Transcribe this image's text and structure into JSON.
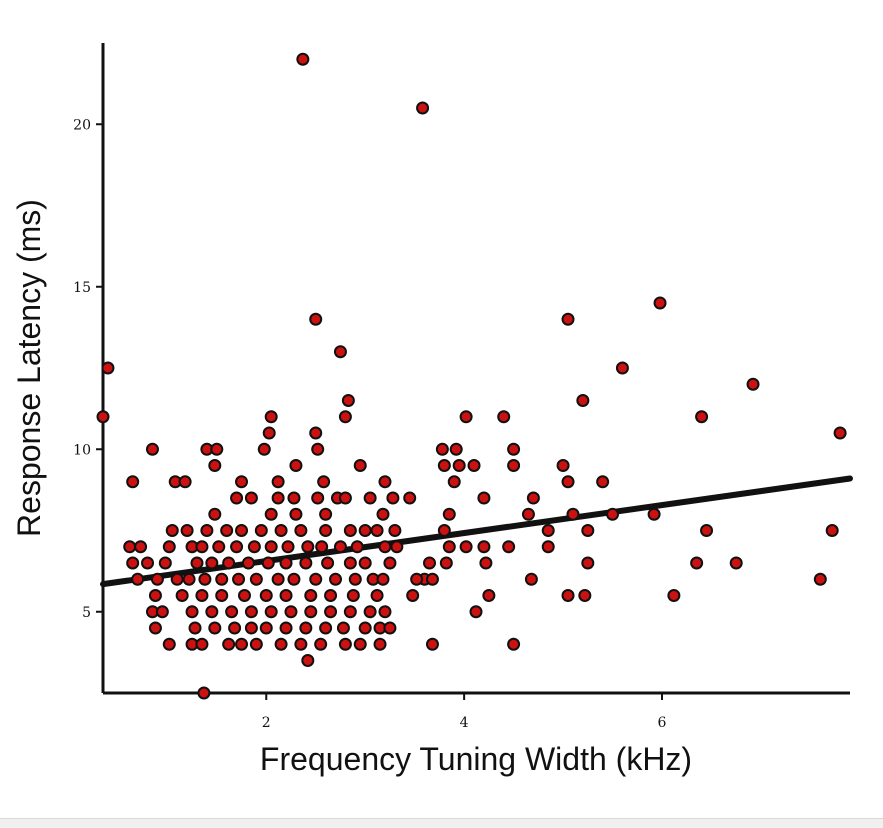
{
  "chart_data": {
    "type": "scatter",
    "title": "",
    "xlabel": "Frequency Tuning Width (kHz)",
    "ylabel": "Response Latency (ms)",
    "xlim": [
      0.35,
      7.9
    ],
    "ylim": [
      2.5,
      22.5
    ],
    "xticks": [
      2,
      4,
      6
    ],
    "yticks": [
      5,
      10,
      15,
      20
    ],
    "grid": false,
    "legend": "none",
    "marker_color": "#cc1111",
    "marker_edge_color": "#111111",
    "trend_line": {
      "x": [
        0.35,
        7.9
      ],
      "y": [
        5.85,
        9.1
      ]
    },
    "points": [
      [
        2.37,
        22.0
      ],
      [
        3.58,
        20.5
      ],
      [
        0.4,
        12.5
      ],
      [
        0.35,
        11.0
      ],
      [
        2.5,
        14.0
      ],
      [
        2.75,
        13.0
      ],
      [
        2.83,
        11.5
      ],
      [
        2.8,
        11.0
      ],
      [
        2.05,
        11.0
      ],
      [
        2.5,
        10.5
      ],
      [
        2.03,
        10.5
      ],
      [
        1.98,
        10.0
      ],
      [
        1.4,
        10.0
      ],
      [
        1.5,
        10.0
      ],
      [
        0.85,
        10.0
      ],
      [
        2.52,
        10.0
      ],
      [
        2.95,
        9.5
      ],
      [
        1.48,
        9.5
      ],
      [
        2.3,
        9.5
      ],
      [
        0.65,
        9.0
      ],
      [
        1.08,
        9.0
      ],
      [
        1.18,
        9.0
      ],
      [
        1.75,
        9.0
      ],
      [
        2.12,
        9.0
      ],
      [
        2.58,
        9.0
      ],
      [
        3.2,
        9.0
      ],
      [
        1.7,
        8.5
      ],
      [
        1.85,
        8.5
      ],
      [
        2.12,
        8.5
      ],
      [
        2.28,
        8.5
      ],
      [
        2.52,
        8.5
      ],
      [
        2.72,
        8.5
      ],
      [
        2.8,
        8.5
      ],
      [
        3.05,
        8.5
      ],
      [
        3.28,
        8.5
      ],
      [
        3.45,
        8.5
      ],
      [
        2.05,
        8.0
      ],
      [
        2.3,
        8.0
      ],
      [
        2.6,
        8.0
      ],
      [
        3.18,
        8.0
      ],
      [
        1.48,
        8.0
      ],
      [
        1.05,
        7.5
      ],
      [
        1.2,
        7.5
      ],
      [
        1.4,
        7.5
      ],
      [
        1.6,
        7.5
      ],
      [
        1.75,
        7.5
      ],
      [
        1.95,
        7.5
      ],
      [
        2.15,
        7.5
      ],
      [
        2.35,
        7.5
      ],
      [
        2.6,
        7.5
      ],
      [
        2.85,
        7.5
      ],
      [
        3.0,
        7.5
      ],
      [
        3.12,
        7.5
      ],
      [
        3.3,
        7.5
      ],
      [
        0.62,
        7.0
      ],
      [
        0.73,
        7.0
      ],
      [
        1.02,
        7.0
      ],
      [
        1.25,
        7.0
      ],
      [
        1.35,
        7.0
      ],
      [
        1.52,
        7.0
      ],
      [
        1.7,
        7.0
      ],
      [
        1.88,
        7.0
      ],
      [
        2.05,
        7.0
      ],
      [
        2.22,
        7.0
      ],
      [
        2.42,
        7.0
      ],
      [
        2.56,
        7.0
      ],
      [
        2.75,
        7.0
      ],
      [
        2.92,
        7.0
      ],
      [
        3.2,
        7.0
      ],
      [
        3.32,
        7.0
      ],
      [
        0.65,
        6.5
      ],
      [
        0.8,
        6.5
      ],
      [
        0.98,
        6.5
      ],
      [
        1.3,
        6.5
      ],
      [
        1.45,
        6.5
      ],
      [
        1.62,
        6.5
      ],
      [
        1.82,
        6.5
      ],
      [
        2.02,
        6.5
      ],
      [
        2.2,
        6.5
      ],
      [
        2.4,
        6.5
      ],
      [
        2.62,
        6.5
      ],
      [
        2.85,
        6.5
      ],
      [
        3.0,
        6.5
      ],
      [
        3.25,
        6.5
      ],
      [
        0.7,
        6.0
      ],
      [
        0.9,
        6.0
      ],
      [
        1.1,
        6.0
      ],
      [
        1.22,
        6.0
      ],
      [
        1.38,
        6.0
      ],
      [
        1.55,
        6.0
      ],
      [
        1.72,
        6.0
      ],
      [
        1.9,
        6.0
      ],
      [
        2.12,
        6.0
      ],
      [
        2.28,
        6.0
      ],
      [
        2.5,
        6.0
      ],
      [
        2.7,
        6.0
      ],
      [
        2.9,
        6.0
      ],
      [
        3.08,
        6.0
      ],
      [
        3.18,
        6.0
      ],
      [
        0.88,
        5.5
      ],
      [
        1.15,
        5.5
      ],
      [
        1.35,
        5.5
      ],
      [
        1.55,
        5.5
      ],
      [
        1.78,
        5.5
      ],
      [
        2.0,
        5.5
      ],
      [
        2.2,
        5.5
      ],
      [
        2.45,
        5.5
      ],
      [
        2.65,
        5.5
      ],
      [
        2.88,
        5.5
      ],
      [
        3.12,
        5.5
      ],
      [
        3.48,
        5.5
      ],
      [
        0.85,
        5.0
      ],
      [
        0.95,
        5.0
      ],
      [
        1.25,
        5.0
      ],
      [
        1.45,
        5.0
      ],
      [
        1.65,
        5.0
      ],
      [
        1.85,
        5.0
      ],
      [
        2.05,
        5.0
      ],
      [
        2.25,
        5.0
      ],
      [
        2.45,
        5.0
      ],
      [
        2.65,
        5.0
      ],
      [
        2.85,
        5.0
      ],
      [
        3.05,
        5.0
      ],
      [
        3.2,
        5.0
      ],
      [
        0.88,
        4.5
      ],
      [
        1.28,
        4.5
      ],
      [
        1.48,
        4.5
      ],
      [
        1.68,
        4.5
      ],
      [
        1.85,
        4.5
      ],
      [
        2.0,
        4.5
      ],
      [
        2.2,
        4.5
      ],
      [
        2.4,
        4.5
      ],
      [
        2.6,
        4.5
      ],
      [
        2.78,
        4.5
      ],
      [
        3.0,
        4.5
      ],
      [
        3.15,
        4.5
      ],
      [
        3.25,
        4.5
      ],
      [
        1.02,
        4.0
      ],
      [
        1.25,
        4.0
      ],
      [
        1.35,
        4.0
      ],
      [
        1.62,
        4.0
      ],
      [
        1.75,
        4.0
      ],
      [
        1.9,
        4.0
      ],
      [
        2.15,
        4.0
      ],
      [
        2.35,
        4.0
      ],
      [
        2.55,
        4.0
      ],
      [
        2.8,
        4.0
      ],
      [
        2.95,
        4.0
      ],
      [
        3.15,
        4.0
      ],
      [
        2.42,
        3.5
      ],
      [
        1.37,
        2.5
      ],
      [
        4.02,
        11.0
      ],
      [
        4.4,
        11.0
      ],
      [
        3.78,
        10.0
      ],
      [
        3.92,
        10.0
      ],
      [
        4.5,
        10.0
      ],
      [
        3.8,
        9.5
      ],
      [
        3.95,
        9.5
      ],
      [
        4.1,
        9.5
      ],
      [
        4.5,
        9.5
      ],
      [
        3.9,
        9.0
      ],
      [
        4.7,
        8.5
      ],
      [
        4.2,
        8.5
      ],
      [
        3.85,
        8.0
      ],
      [
        4.65,
        8.0
      ],
      [
        3.8,
        7.5
      ],
      [
        3.85,
        7.0
      ],
      [
        4.02,
        7.0
      ],
      [
        4.2,
        7.0
      ],
      [
        4.45,
        7.0
      ],
      [
        4.85,
        7.5
      ],
      [
        3.82,
        6.5
      ],
      [
        4.22,
        6.5
      ],
      [
        3.65,
        6.5
      ],
      [
        3.6,
        6.0
      ],
      [
        3.52,
        6.0
      ],
      [
        3.68,
        6.0
      ],
      [
        4.25,
        5.5
      ],
      [
        4.12,
        5.0
      ],
      [
        3.68,
        4.0
      ],
      [
        4.5,
        4.0
      ],
      [
        4.68,
        6.0
      ],
      [
        4.85,
        7.0
      ],
      [
        5.05,
        14.0
      ],
      [
        5.2,
        11.5
      ],
      [
        5.0,
        9.5
      ],
      [
        5.05,
        9.0
      ],
      [
        5.4,
        9.0
      ],
      [
        5.1,
        8.0
      ],
      [
        5.5,
        8.0
      ],
      [
        5.25,
        7.5
      ],
      [
        5.25,
        6.5
      ],
      [
        5.05,
        5.5
      ],
      [
        5.22,
        5.5
      ],
      [
        5.98,
        14.5
      ],
      [
        5.6,
        12.5
      ],
      [
        5.92,
        8.0
      ],
      [
        6.4,
        11.0
      ],
      [
        6.92,
        12.0
      ],
      [
        6.45,
        7.5
      ],
      [
        6.35,
        6.5
      ],
      [
        6.75,
        6.5
      ],
      [
        6.12,
        5.5
      ],
      [
        7.8,
        10.5
      ],
      [
        7.72,
        7.5
      ],
      [
        7.6,
        6.0
      ]
    ]
  }
}
